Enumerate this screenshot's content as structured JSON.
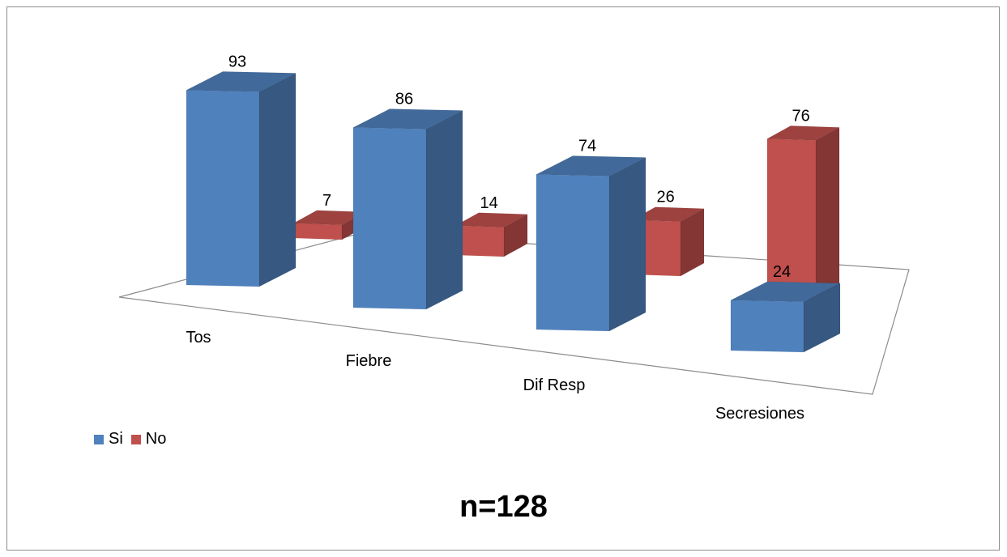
{
  "chart_data": {
    "type": "bar",
    "style": "3d-clustered-column",
    "categories": [
      "Tos",
      "Fiebre",
      "Dif Resp",
      "Secresiones"
    ],
    "series": [
      {
        "name": "Si",
        "values": [
          93,
          86,
          74,
          24
        ],
        "color": "#4f81bd"
      },
      {
        "name": "No",
        "values": [
          7,
          14,
          26,
          76
        ],
        "color": "#c0504d"
      }
    ],
    "data_labels": true,
    "legend_position": "bottom-left",
    "grid": false,
    "ylim": [
      0,
      100
    ]
  },
  "annotation": "n=128"
}
